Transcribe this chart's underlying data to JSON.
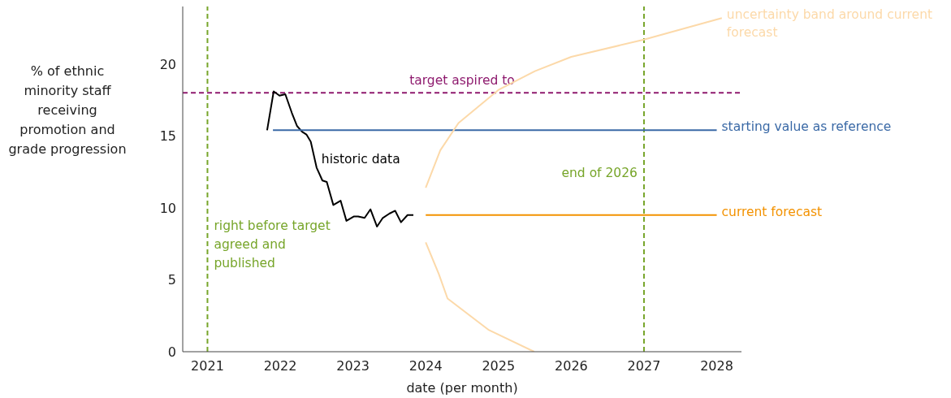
{
  "chart_data": {
    "type": "line",
    "xlabel": "date (per month)",
    "ylabel": "% of ethnic minority staff receiving promotion and grade progression",
    "xlim": [
      2020.66,
      2028.34
    ],
    "xticks": [
      2021,
      2022,
      2023,
      2024,
      2025,
      2026,
      2027,
      2028
    ],
    "ylim": [
      0,
      24
    ],
    "yticks": [
      0,
      5,
      10,
      15,
      20
    ],
    "grid": false,
    "legend": false,
    "marker": "none",
    "line_style": "solid",
    "series": [
      {
        "name": "historic data",
        "color": "#000000",
        "x": [
          2021.82,
          2021.91,
          2021.99,
          2022.07,
          2022.16,
          2022.23,
          2022.3,
          2022.36,
          2022.42,
          2022.5,
          2022.58,
          2022.64,
          2022.73,
          2022.83,
          2022.91,
          2023.01,
          2023.07,
          2023.16,
          2023.24,
          2023.33,
          2023.41,
          2023.5,
          2023.58,
          2023.66,
          2023.75,
          2023.83
        ],
        "values": [
          15.4,
          18.1,
          17.8,
          17.9,
          16.6,
          15.7,
          15.3,
          15.1,
          14.6,
          12.8,
          11.9,
          11.8,
          10.2,
          10.5,
          9.1,
          9.4,
          9.4,
          9.3,
          9.9,
          8.7,
          9.3,
          9.6,
          9.8,
          9.0,
          9.5,
          9.5
        ]
      },
      {
        "name": "starting value as reference",
        "color": "#3a69a6",
        "x": [
          2021.9,
          2028.0
        ],
        "values": [
          15.4,
          15.4
        ]
      },
      {
        "name": "current forecast",
        "color": "#f39200",
        "x": [
          2024.0,
          2028.0
        ],
        "values": [
          9.5,
          9.5
        ]
      },
      {
        "name": "uncertainty band around current forecast",
        "color": "#fcd9a9",
        "x": [
          2024.0,
          2024.2,
          2024.45,
          2025.0,
          2025.5,
          2026.0,
          2027.0,
          2028.07
        ],
        "values": [
          11.4,
          14.0,
          15.9,
          18.2,
          19.5,
          20.5,
          21.7,
          23.2
        ]
      },
      {
        "color": "#fcd9a9",
        "x": [
          2024.0,
          2024.18,
          2024.3,
          2024.87,
          2025.49
        ],
        "values": [
          7.6,
          5.4,
          3.7,
          1.5,
          0
        ]
      }
    ],
    "ref_lines": [
      {
        "axis": "y",
        "value": 18,
        "label": "target aspired to",
        "color": "#8e1a6e",
        "line_style": "dashed"
      },
      {
        "axis": "x",
        "value": 2021,
        "label": "right before target agreed and published",
        "color": "#77a52a",
        "line_style": "dashed"
      },
      {
        "axis": "x",
        "value": 2027,
        "label": "end of 2026",
        "color": "#77a52a",
        "line_style": "dashed"
      }
    ]
  }
}
